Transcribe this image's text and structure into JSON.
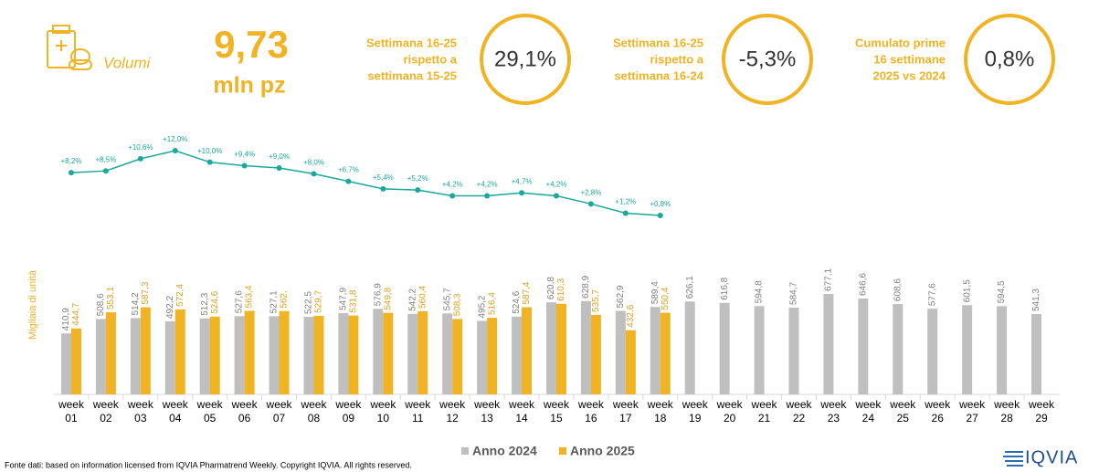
{
  "header": {
    "label": "Volumi",
    "value": "9,73",
    "unit": "mln pz"
  },
  "kpis": [
    {
      "label_lines": [
        "Settimana 16-25",
        "rispetto a",
        "settimana 15-25"
      ],
      "value": "29,1%"
    },
    {
      "label_lines": [
        "Settimana 16-25",
        "rispetto a",
        "settimana 16-24"
      ],
      "value": "-5,3%"
    },
    {
      "label_lines": [
        "Cumulato prime",
        "16 settimane",
        "2025 vs 2024"
      ],
      "value": "0,8%"
    }
  ],
  "chart_data": {
    "type": "bar",
    "y_label": "Migliaia di unità",
    "ylim": [
      0,
      800
    ],
    "legend": "bottom",
    "categories": [
      "week 01",
      "week 02",
      "week 03",
      "week 04",
      "week 05",
      "week 06",
      "week 07",
      "week 08",
      "week 09",
      "week 10",
      "week 11",
      "week 12",
      "week 13",
      "week 14",
      "week 15",
      "week 16",
      "week 17",
      "week 18",
      "week 19",
      "week 20",
      "week 21",
      "week 22",
      "week 23",
      "week 24",
      "week 25",
      "week 26",
      "week 27",
      "week 28",
      "week 29"
    ],
    "series": [
      {
        "name": "Anno 2024",
        "color": "#bfbfbf",
        "values": [
          410.9,
          508.6,
          514.2,
          492.2,
          512.3,
          527.6,
          527.1,
          522.5,
          547.9,
          576.9,
          542.2,
          545.7,
          495.2,
          524.6,
          620.8,
          628.9,
          562.9,
          589.4,
          626.1,
          616.8,
          594.8,
          584.7,
          677.1,
          646.6,
          608.6,
          577.6,
          601.5,
          594.5,
          541.3
        ],
        "value_labels": [
          "410,9",
          "508,6",
          "514,2",
          "492,2",
          "512,3",
          "527,6",
          "527,1",
          "522,5",
          "547,9",
          "576,9",
          "542,2",
          "545,7",
          "495,2",
          "524,6",
          "620,8",
          "628,9",
          "562,9",
          "589,4",
          "626,1",
          "616,8",
          "594,8",
          "584,7",
          "677,1",
          "646,6",
          "608,6",
          "577,6",
          "601,5",
          "594,5",
          "541,3"
        ]
      },
      {
        "name": "Anno 2025",
        "color": "#f0b323",
        "values": [
          444.7,
          553.1,
          587.3,
          572.4,
          524.6,
          563.4,
          562,
          529.7,
          531.8,
          549.8,
          560.4,
          508.3,
          516.4,
          587.4,
          610.3,
          535.7,
          432.6,
          550.4,
          null,
          null,
          null,
          null,
          null,
          null,
          null,
          null,
          null,
          null,
          null
        ],
        "value_labels": [
          "444,7",
          "553,1",
          "587,3",
          "572,4",
          "524,6",
          "563,4",
          "562,",
          "529,7",
          "531,8",
          "549,8",
          "560,4",
          "508,3",
          "516,4",
          "587,4",
          "610,3",
          "535,7",
          "432,6",
          "550,4",
          null,
          null,
          null,
          null,
          null,
          null,
          null,
          null,
          null,
          null,
          null
        ]
      }
    ],
    "line": {
      "type": "line",
      "color": "#1aa89a",
      "values": [
        8.2,
        8.5,
        10.6,
        12.0,
        10.0,
        9.4,
        9.0,
        8.0,
        6.7,
        5.4,
        5.2,
        4.2,
        4.2,
        4.7,
        4.2,
        2.8,
        1.2,
        0.8
      ],
      "value_labels": [
        "+8,2%",
        "+8,5%",
        "+10,6%",
        "+12,0%",
        "+10,0%",
        "+9,4%",
        "+9,0%",
        "+8,0%",
        "+6,7%",
        "+5,4%",
        "+5,2%",
        "+4,2%",
        "+4,2%",
        "+4,7%",
        "+4,2%",
        "+2,8%",
        "+1,2%",
        "+0,8%"
      ]
    }
  },
  "footer": {
    "source": "Fonte dati: based on information licensed from IQVIA Pharmatrend Weekly. Copyright IQVIA. All rights reserved.",
    "logo": "IQVIA"
  }
}
